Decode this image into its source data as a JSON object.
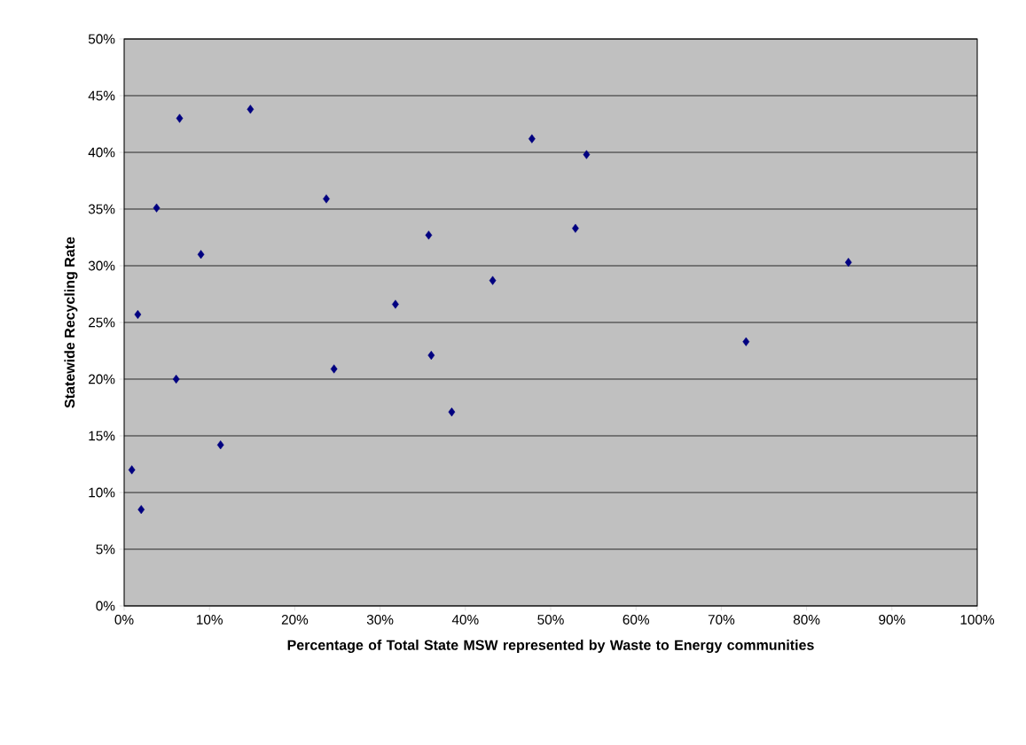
{
  "chart_data": {
    "type": "scatter",
    "xlabel": "Percentage of Total State MSW represented by  Waste to Energy communities",
    "ylabel": "Statewide Recycling Rate",
    "x": [
      0.9,
      2.0,
      1.6,
      3.8,
      6.5,
      6.1,
      9.0,
      11.3,
      14.8,
      23.7,
      24.6,
      31.8,
      35.7,
      36.0,
      38.4,
      43.2,
      47.8,
      52.9,
      54.2,
      72.9,
      84.9
    ],
    "values": [
      12.0,
      8.5,
      25.7,
      35.1,
      43.0,
      20.0,
      31.0,
      14.2,
      43.8,
      35.9,
      20.9,
      26.6,
      32.7,
      22.1,
      17.1,
      28.7,
      41.2,
      33.3,
      39.8,
      23.3,
      30.3
    ],
    "color": "#000080",
    "marker": "diamond",
    "grid": "y",
    "xlim": [
      0,
      100
    ],
    "ylim": [
      0,
      50
    ],
    "xticks": [
      {
        "value": 0,
        "label": "0%"
      },
      {
        "value": 10,
        "label": "10%"
      },
      {
        "value": 20,
        "label": "20%"
      },
      {
        "value": 30,
        "label": "30%"
      },
      {
        "value": 40,
        "label": "40%"
      },
      {
        "value": 50,
        "label": "50%"
      },
      {
        "value": 60,
        "label": "60%"
      },
      {
        "value": 70,
        "label": "70%"
      },
      {
        "value": 80,
        "label": "80%"
      },
      {
        "value": 90,
        "label": "90%"
      },
      {
        "value": 100,
        "label": "100%"
      }
    ],
    "yticks": [
      {
        "value": 0,
        "label": "0%"
      },
      {
        "value": 5,
        "label": "5%"
      },
      {
        "value": 10,
        "label": "10%"
      },
      {
        "value": 15,
        "label": "15%"
      },
      {
        "value": 20,
        "label": "20%"
      },
      {
        "value": 25,
        "label": "25%"
      },
      {
        "value": 30,
        "label": "30%"
      },
      {
        "value": 35,
        "label": "35%"
      },
      {
        "value": 40,
        "label": "40%"
      },
      {
        "value": 45,
        "label": "45%"
      },
      {
        "value": 50,
        "label": "50%"
      }
    ]
  }
}
